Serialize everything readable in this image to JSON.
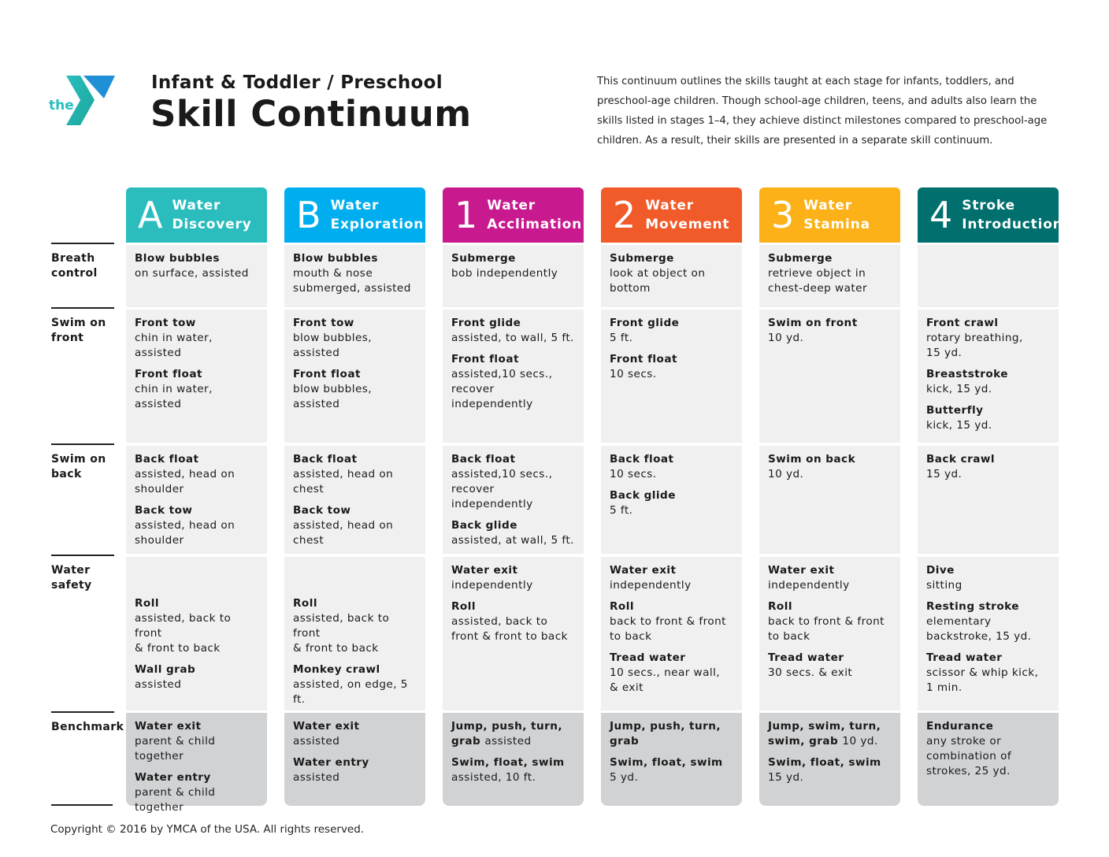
{
  "header": {
    "logo_text": "the YMCA",
    "subtitle": "Infant & Toddler / Preschool",
    "title": "Skill Continuum",
    "intro": "This continuum outlines the skills taught at each stage for infants, toddlers, and\npreschool-age children. Though school-age children, teens, and adults also learn the\nskills listed in stages 1–4, they achieve distinct milestones compared to preschool-age\nchildren. As a result, their skills are presented in a separate skill continuum."
  },
  "row_labels": [
    "Breath\ncontrol",
    "Swim on\nfront",
    "Swim on\nback",
    "Water\nsafety",
    "Benchmark"
  ],
  "columns": [
    {
      "letter": "A",
      "name1": "Water",
      "name2": "Discovery",
      "color": "#2bbdbe",
      "rows": [
        [
          {
            "t": "Blow bubbles",
            "d": "on surface, assisted"
          }
        ],
        [
          {
            "t": "Front tow",
            "d": "chin in water, assisted"
          },
          {
            "t": "Front float",
            "d": "chin in water, assisted"
          }
        ],
        [
          {
            "t": "Back float",
            "d": "assisted, head on\nshoulder"
          },
          {
            "t": "Back tow",
            "d": "assisted, head on\nshoulder"
          }
        ],
        [
          {
            "t": "Roll",
            "d": "assisted, back to front\n& front to back"
          },
          {
            "t": "Wall grab",
            "d": "assisted"
          }
        ],
        [
          {
            "t": "Water exit",
            "d": "parent & child together"
          },
          {
            "t": "Water entry",
            "d": "parent & child together"
          }
        ]
      ]
    },
    {
      "letter": "B",
      "name1": "Water",
      "name2": "Exploration",
      "color": "#00aeef",
      "rows": [
        [
          {
            "t": "Blow bubbles",
            "d": "mouth & nose\nsubmerged, assisted"
          }
        ],
        [
          {
            "t": "Front tow",
            "d": "blow bubbles, assisted"
          },
          {
            "t": "Front float",
            "d": "blow bubbles, assisted"
          }
        ],
        [
          {
            "t": "Back float",
            "d": "assisted, head on chest"
          },
          {
            "t": "Back tow",
            "d": "assisted, head on chest"
          }
        ],
        [
          {
            "t": "Roll",
            "d": "assisted, back to front\n& front to back"
          },
          {
            "t": "Monkey crawl",
            "d": "assisted, on edge, 5 ft."
          }
        ],
        [
          {
            "t": "Water exit",
            "d": "assisted"
          },
          {
            "t": "Water entry",
            "d": "assisted"
          }
        ]
      ]
    },
    {
      "letter": "1",
      "name1": "Water",
      "name2": "Acclimation",
      "color": "#c8198f",
      "rows": [
        [
          {
            "t": "Submerge",
            "d": "bob independently"
          }
        ],
        [
          {
            "t": "Front glide",
            "d": "assisted, to wall, 5 ft."
          },
          {
            "t": "Front float",
            "d": "assisted,10 secs.,\nrecover independently"
          }
        ],
        [
          {
            "t": "Back float",
            "d": "assisted,10 secs.,\nrecover independently"
          },
          {
            "t": "Back glide",
            "d": "assisted, at wall, 5 ft."
          }
        ],
        [
          {
            "t": "Water exit",
            "d": "independently"
          },
          {
            "t": "Roll",
            "d": "assisted, back to\nfront & front to back"
          }
        ],
        [
          {
            "t": "Jump, push, turn,\ngrab",
            "inline": "assisted"
          },
          {
            "t": "Swim, float, swim",
            "d": "assisted, 10 ft."
          }
        ]
      ]
    },
    {
      "letter": "2",
      "name1": "Water",
      "name2": "Movement",
      "color": "#f15a29",
      "rows": [
        [
          {
            "t": "Submerge",
            "d": "look at object on\nbottom"
          }
        ],
        [
          {
            "t": "Front glide",
            "d": "5 ft."
          },
          {
            "t": "Front float",
            "d": "10 secs."
          }
        ],
        [
          {
            "t": "Back float",
            "d": "10 secs."
          },
          {
            "t": "Back glide",
            "d": "5 ft."
          }
        ],
        [
          {
            "t": "Water exit",
            "d": "independently"
          },
          {
            "t": "Roll",
            "d": "back to front & front\nto back"
          },
          {
            "t": "Tread water",
            "d": "10 secs., near wall,\n& exit"
          }
        ],
        [
          {
            "t": "Jump, push, turn,\ngrab"
          },
          {
            "t": "Swim, float, swim",
            "d": "5 yd."
          }
        ]
      ]
    },
    {
      "letter": "3",
      "name1": "Water",
      "name2": "Stamina",
      "color": "#fbb117",
      "rows": [
        [
          {
            "t": "Submerge",
            "d": "retrieve object in\nchest-deep water"
          }
        ],
        [
          {
            "t": "Swim on front",
            "d": "10 yd."
          }
        ],
        [
          {
            "t": "Swim on back",
            "d": "10 yd."
          }
        ],
        [
          {
            "t": "Water exit",
            "d": "independently"
          },
          {
            "t": "Roll",
            "d": "back to front & front\nto back"
          },
          {
            "t": "Tread water",
            "d": "30 secs. & exit"
          }
        ],
        [
          {
            "t": "Jump, swim, turn,\nswim, grab",
            "inline": "10 yd."
          },
          {
            "t": "Swim, float, swim",
            "d": "15 yd."
          }
        ]
      ]
    },
    {
      "letter": "4",
      "name1": "Stroke",
      "name2": "Introduction",
      "color": "#006f6e",
      "rows": [
        [],
        [
          {
            "t": "Front crawl",
            "d": "rotary breathing,\n15 yd."
          },
          {
            "t": "Breaststroke",
            "d": "kick, 15 yd."
          },
          {
            "t": "Butterfly",
            "d": "kick, 15 yd."
          }
        ],
        [
          {
            "t": "Back crawl",
            "d": "15 yd."
          }
        ],
        [
          {
            "t": "Dive",
            "d": "sitting"
          },
          {
            "t": "Resting stroke",
            "d": "elementary\nbackstroke, 15 yd."
          },
          {
            "t": "Tread water",
            "d": "scissor & whip kick,\n1 min."
          }
        ],
        [
          {
            "t": "Endurance",
            "d": "any stroke or\ncombination of\nstrokes, 25 yd."
          }
        ]
      ]
    }
  ],
  "footer": {
    "copyright": "Copyright © 2016 by YMCA of the USA. All rights reserved."
  }
}
